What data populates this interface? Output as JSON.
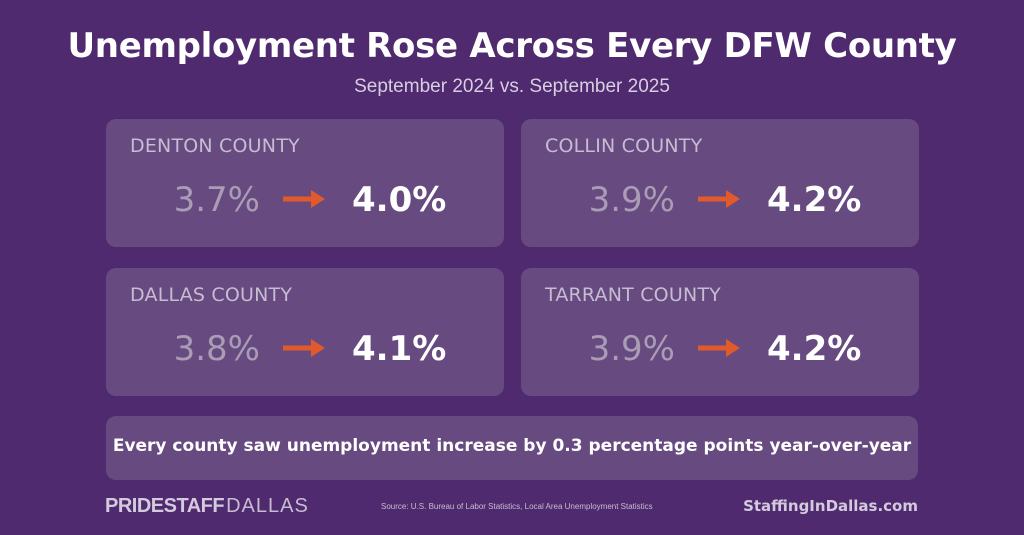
{
  "title": "Unemployment Rose Across Every DFW County",
  "subtitle": "September 2024 vs. September 2025",
  "colors": {
    "background": "#4f2a6e",
    "card": "#664a80",
    "arrow": "#e05a2b"
  },
  "counties": [
    {
      "name": "DENTON COUNTY",
      "before": "3.7%",
      "after": "4.0%"
    },
    {
      "name": "COLLIN COUNTY",
      "before": "3.9%",
      "after": "4.2%"
    },
    {
      "name": "DALLAS COUNTY",
      "before": "3.8%",
      "after": "4.1%"
    },
    {
      "name": "TARRANT COUNTY",
      "before": "3.9%",
      "after": "4.2%"
    }
  ],
  "arrow_icon": "arrow-right-icon",
  "summary": "Every county saw unemployment increase by 0.3 percentage points year-over-year",
  "footer": {
    "logo_bold": "PRIDESTAFF",
    "logo_light": "DALLAS",
    "source": "Source: U.S. Bureau of Labor Statistics, Local Area Unemployment Statistics",
    "site": "StaffingInDallas.com"
  }
}
